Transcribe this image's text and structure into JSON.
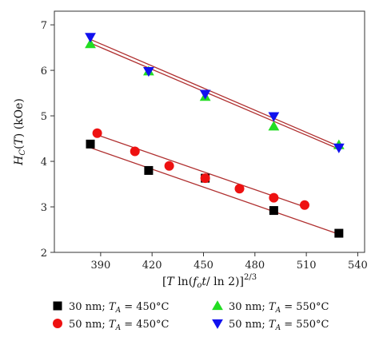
{
  "chart_data": {
    "type": "scatter",
    "xlabel": "[T ln(f_o t/ ln 2)]^(2/3)",
    "ylabel": "H_C(T) (kOe)",
    "xlim": [
      363,
      544
    ],
    "ylim": [
      2,
      7.3
    ],
    "xticks": [
      390,
      420,
      450,
      480,
      510,
      540
    ],
    "yticks": [
      2,
      3,
      4,
      5,
      6,
      7
    ],
    "grid": false,
    "legend_position": "bottom",
    "series": [
      {
        "name": "30 nm; T_A = 450°C",
        "marker": "square",
        "color": "#000000",
        "points": [
          [
            384,
            4.38
          ],
          [
            418,
            3.8
          ],
          [
            451,
            3.63
          ],
          [
            491,
            2.92
          ],
          [
            529,
            2.42
          ]
        ],
        "fit": [
          [
            384,
            4.3
          ],
          [
            529,
            2.4
          ]
        ]
      },
      {
        "name": "50 nm; T_A = 450°C",
        "marker": "circle",
        "color": "#ee1111",
        "points": [
          [
            388,
            4.62
          ],
          [
            410,
            4.22
          ],
          [
            430,
            3.9
          ],
          [
            451,
            3.63
          ],
          [
            471,
            3.4
          ],
          [
            491,
            3.2
          ],
          [
            509,
            3.04
          ]
        ],
        "fit": [
          [
            388,
            4.58
          ],
          [
            509,
            3.0
          ]
        ]
      },
      {
        "name": "30 nm; T_A = 550°C",
        "marker": "triangle-up",
        "color": "#22dd22",
        "points": [
          [
            384,
            6.58
          ],
          [
            418,
            5.98
          ],
          [
            451,
            5.42
          ],
          [
            491,
            4.77
          ],
          [
            529,
            4.36
          ]
        ],
        "fit": [
          [
            384,
            6.6
          ],
          [
            529,
            4.27
          ]
        ]
      },
      {
        "name": "50 nm; T_A = 550°C",
        "marker": "triangle-down",
        "color": "#1111ee",
        "points": [
          [
            384,
            6.73
          ],
          [
            418,
            5.98
          ],
          [
            451,
            5.48
          ],
          [
            491,
            4.99
          ],
          [
            529,
            4.3
          ]
        ],
        "fit": [
          [
            384,
            6.68
          ],
          [
            529,
            4.33
          ]
        ]
      }
    ],
    "fit_color": "#b03030"
  }
}
